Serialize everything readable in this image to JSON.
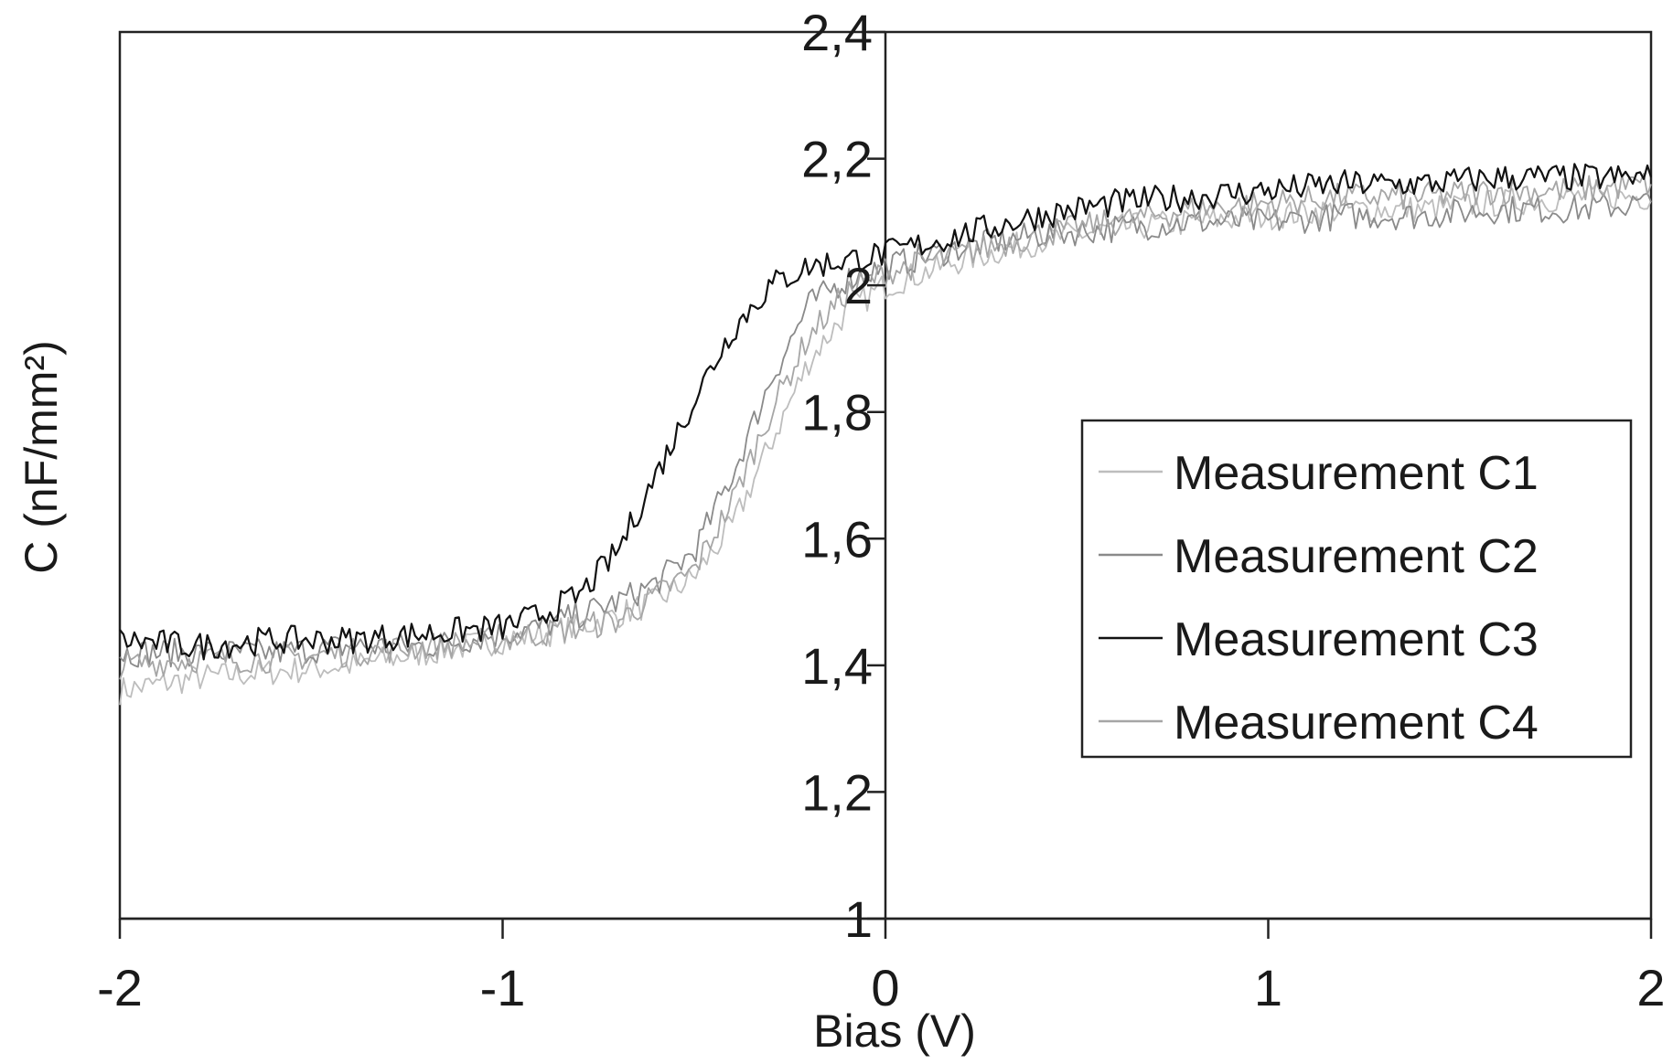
{
  "chart_data": {
    "type": "line",
    "title": "",
    "xlabel": "Bias (V)",
    "ylabel": "C (nF/mm²)",
    "xlim": [
      -2,
      2
    ],
    "ylim": [
      1,
      2.4
    ],
    "x_ticks": [
      -2,
      -1,
      0,
      1,
      2
    ],
    "x_tick_labels": [
      "-2",
      "-1",
      "0",
      "1",
      "2"
    ],
    "y_ticks": [
      1,
      1.2,
      1.4,
      1.6,
      1.8,
      2,
      2.2,
      2.4
    ],
    "y_tick_labels": [
      "1",
      "1,2",
      "1,4",
      "1,6",
      "1,8",
      "2",
      "2,2",
      "2,4"
    ],
    "grid": false,
    "legend_position": "right",
    "x": [
      -2.0,
      -1.8,
      -1.6,
      -1.4,
      -1.2,
      -1.0,
      -0.9,
      -0.8,
      -0.7,
      -0.6,
      -0.5,
      -0.4,
      -0.3,
      -0.2,
      -0.1,
      0.0,
      0.2,
      0.4,
      0.6,
      0.8,
      1.0,
      1.2,
      1.4,
      1.6,
      1.8,
      2.0
    ],
    "series": [
      {
        "name": "Measurement C1",
        "color": "#bdbdbd",
        "values": [
          1.36,
          1.38,
          1.39,
          1.4,
          1.42,
          1.44,
          1.45,
          1.46,
          1.48,
          1.5,
          1.54,
          1.62,
          1.75,
          1.88,
          1.96,
          2.0,
          2.04,
          2.07,
          2.09,
          2.1,
          2.11,
          2.12,
          2.12,
          2.13,
          2.14,
          2.14
        ]
      },
      {
        "name": "Measurement C2",
        "color": "#8a8a8a",
        "values": [
          1.42,
          1.42,
          1.42,
          1.43,
          1.43,
          1.45,
          1.46,
          1.48,
          1.5,
          1.53,
          1.58,
          1.7,
          1.85,
          1.97,
          2.01,
          2.03,
          2.06,
          2.08,
          2.09,
          2.1,
          2.1,
          2.11,
          2.11,
          2.12,
          2.12,
          2.13
        ]
      },
      {
        "name": "Measurement C3",
        "color": "#111111",
        "values": [
          1.44,
          1.43,
          1.44,
          1.44,
          1.45,
          1.46,
          1.48,
          1.51,
          1.58,
          1.7,
          1.82,
          1.93,
          2.0,
          2.03,
          2.04,
          2.05,
          2.08,
          2.11,
          2.13,
          2.14,
          2.15,
          2.16,
          2.16,
          2.17,
          2.17,
          2.17
        ]
      },
      {
        "name": "Measurement C4",
        "color": "#a6a6a6",
        "values": [
          1.4,
          1.41,
          1.41,
          1.42,
          1.43,
          1.44,
          1.45,
          1.46,
          1.47,
          1.51,
          1.55,
          1.66,
          1.8,
          1.92,
          1.99,
          2.02,
          2.05,
          2.08,
          2.1,
          2.12,
          2.13,
          2.14,
          2.14,
          2.15,
          2.15,
          2.16
        ]
      }
    ]
  }
}
